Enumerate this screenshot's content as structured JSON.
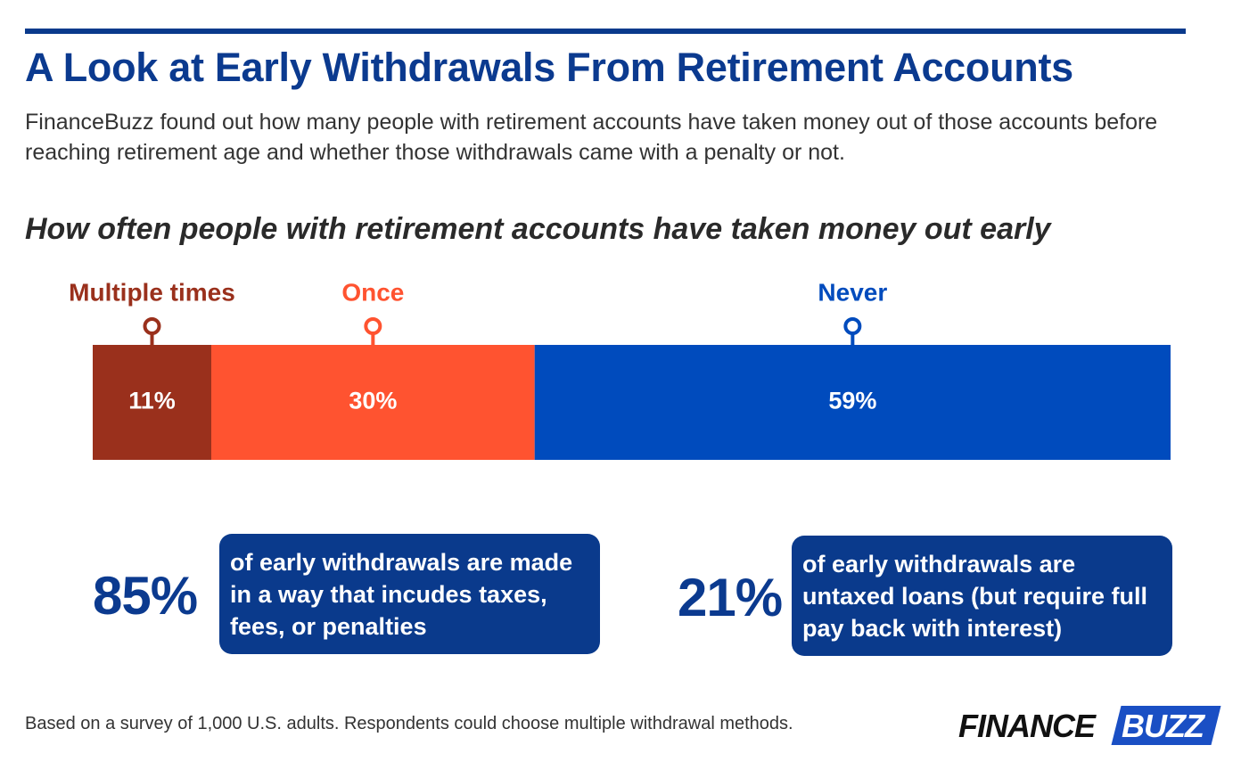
{
  "header": {
    "title": "A Look at Early Withdrawals From Retirement Accounts",
    "subtitle": "FinanceBuzz found out how many people with retirement accounts have taken money out of those accounts before reaching retirement age and whether those withdrawals came with a penalty or not."
  },
  "chart_data": {
    "type": "stacked_bar",
    "title": "How often people with retirement accounts have taken money out early",
    "series": [
      {
        "name": "Multiple times",
        "color": "#9a301c",
        "values": [
          11
        ],
        "value_labels": [
          "11%"
        ]
      },
      {
        "name": "Once",
        "color": "#ff5330",
        "values": [
          30
        ],
        "value_labels": [
          "30%"
        ]
      },
      {
        "name": "Never",
        "color": "#004bbd",
        "values": [
          59
        ],
        "value_labels": [
          "59%"
        ]
      }
    ]
  },
  "stats": [
    {
      "figure": "85%",
      "text": "of early withdrawals are made in a way that incudes taxes, fees, or penalties"
    },
    {
      "figure": "21%",
      "text": "of early withdrawals are untaxed loans (but require full pay back with interest)"
    }
  ],
  "footnote": "Based on a survey of 1,000 U.S. adults. Respondents could choose multiple withdrawal methods.",
  "logo": {
    "left": "FINANCE",
    "right": "BUZZ"
  }
}
